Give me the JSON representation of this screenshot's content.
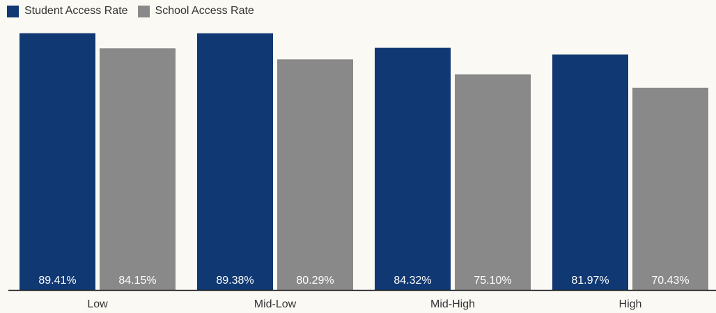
{
  "chart_data": {
    "type": "bar",
    "title": "",
    "xlabel": "",
    "ylabel": "",
    "categories": [
      "Low",
      "Mid-Low",
      "Mid-High",
      "High"
    ],
    "series": [
      {
        "name": "Student Access Rate",
        "values": [
          89.41,
          89.38,
          84.32,
          81.97
        ],
        "labels": [
          "89.41%",
          "89.38%",
          "84.32%",
          "81.97%"
        ],
        "color": "#103872"
      },
      {
        "name": "School Access Rate",
        "values": [
          84.15,
          80.29,
          75.1,
          70.43
        ],
        "labels": [
          "84.15%",
          "80.29%",
          "75.10%",
          "70.43%"
        ],
        "color": "#898989"
      }
    ],
    "ylim": [
      0,
      100
    ],
    "grid": false,
    "legend": "top-left"
  }
}
